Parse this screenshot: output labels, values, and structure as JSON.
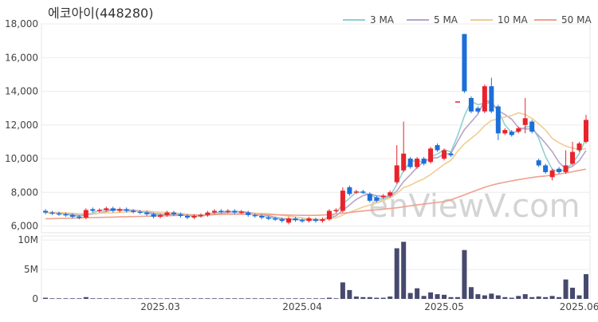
{
  "watermark": "enViewV.com",
  "chart_data": [
    {
      "type": "candlestick",
      "title": "에코아이(448280)",
      "open": [
        6900,
        6800,
        6750,
        6700,
        6650,
        6550,
        6500,
        7000,
        6900,
        6950,
        7050,
        6900,
        7000,
        6900,
        6850,
        6800,
        6700,
        6550,
        6650,
        6800,
        6700,
        6600,
        6500,
        6600,
        6650,
        6800,
        6900,
        6850,
        6900,
        6800,
        6800,
        6650,
        6600,
        6500,
        6450,
        6400,
        6200,
        6450,
        6350,
        6300,
        6400,
        6300,
        6400,
        6900,
        6900,
        8300,
        8000,
        8050,
        7900,
        7700,
        7700,
        7800,
        8600,
        9300,
        10000,
        9500,
        10000,
        9800,
        10800,
        10000,
        10300,
        13400,
        17400,
        13600,
        13000,
        12800,
        14300,
        13100,
        11500,
        11600,
        11600,
        12000,
        12200,
        9900,
        9600,
        8900,
        9400,
        9200,
        9700,
        10500,
        11000
      ],
      "high": [
        7000,
        6900,
        6850,
        6800,
        6750,
        6650,
        7050,
        7100,
        7050,
        7150,
        7150,
        7100,
        7100,
        7000,
        6950,
        6900,
        6800,
        6750,
        6900,
        6900,
        6800,
        6700,
        6700,
        6750,
        6900,
        7000,
        7000,
        7000,
        7000,
        6950,
        6900,
        6750,
        6700,
        6600,
        6550,
        6500,
        6550,
        6550,
        6450,
        6550,
        6500,
        6500,
        7000,
        7050,
        8300,
        8400,
        8150,
        8150,
        8000,
        7800,
        7900,
        8100,
        10800,
        12200,
        10100,
        10100,
        10100,
        10700,
        10900,
        10600,
        10400,
        13400,
        17400,
        13700,
        13100,
        14400,
        14800,
        13200,
        11800,
        11700,
        11900,
        13600,
        12300,
        10000,
        9700,
        9400,
        9500,
        10500,
        11000,
        11000,
        12600
      ],
      "low": [
        6700,
        6650,
        6600,
        6550,
        6450,
        6400,
        6400,
        6800,
        6800,
        6850,
        6800,
        6800,
        6800,
        6750,
        6700,
        6600,
        6450,
        6450,
        6550,
        6600,
        6500,
        6400,
        6400,
        6500,
        6550,
        6700,
        6750,
        6750,
        6700,
        6700,
        6550,
        6500,
        6400,
        6350,
        6300,
        6200,
        6100,
        6250,
        6200,
        6200,
        6200,
        6200,
        6300,
        6800,
        6800,
        7800,
        7900,
        7900,
        7400,
        7400,
        7600,
        7700,
        8500,
        9200,
        9400,
        9400,
        9600,
        9700,
        10400,
        9900,
        10100,
        13400,
        13900,
        12700,
        12700,
        12700,
        12700,
        11100,
        11400,
        11300,
        11500,
        11500,
        11500,
        9500,
        9100,
        8700,
        9100,
        9100,
        9600,
        10400,
        10900
      ],
      "close": [
        6800,
        6750,
        6700,
        6650,
        6550,
        6500,
        6950,
        6900,
        6950,
        7050,
        6900,
        7000,
        6900,
        6850,
        6800,
        6700,
        6550,
        6650,
        6800,
        6700,
        6600,
        6500,
        6600,
        6650,
        6800,
        6900,
        6850,
        6900,
        6800,
        6850,
        6650,
        6600,
        6500,
        6450,
        6400,
        6300,
        6450,
        6350,
        6300,
        6450,
        6300,
        6400,
        6900,
        6950,
        8100,
        7900,
        8050,
        8000,
        7500,
        7500,
        7800,
        8000,
        9600,
        10300,
        9500,
        10000,
        9700,
        10600,
        10500,
        10500,
        10200,
        13400,
        14000,
        12800,
        12800,
        14300,
        12800,
        11500,
        11700,
        11400,
        11800,
        12400,
        11600,
        9600,
        9200,
        9300,
        9200,
        9600,
        10400,
        10900,
        12300
      ],
      "up_color": "#e8232b",
      "down_color": "#1d6fd8",
      "series": [
        {
          "name": "3 MA",
          "color": "#8fd0d0",
          "values": [
            6800,
            6780,
            6750,
            6700,
            6630,
            6570,
            6670,
            6780,
            6930,
            6970,
            6970,
            6980,
            6930,
            6920,
            6850,
            6780,
            6680,
            6630,
            6670,
            6720,
            6700,
            6600,
            6570,
            6580,
            6680,
            6780,
            6850,
            6880,
            6850,
            6850,
            6770,
            6700,
            6580,
            6520,
            6450,
            6380,
            6380,
            6370,
            6370,
            6370,
            6350,
            6380,
            6530,
            6750,
            7320,
            7650,
            8020,
            7980,
            7850,
            7670,
            7600,
            7770,
            8470,
            9300,
            9800,
            9930,
            9730,
            10100,
            10270,
            10530,
            10400,
            11370,
            12530,
            13400,
            13200,
            13300,
            13300,
            12870,
            12000,
            11530,
            11630,
            11870,
            11930,
            11200,
            10130,
            9370,
            9230,
            9370,
            9730,
            10300,
            11200
          ]
        },
        {
          "name": "5 MA",
          "color": "#b7a3c9",
          "values": [
            6800,
            6790,
            6770,
            6740,
            6690,
            6630,
            6670,
            6710,
            6770,
            6870,
            6950,
            6960,
            6960,
            6940,
            6890,
            6850,
            6760,
            6710,
            6700,
            6680,
            6660,
            6650,
            6640,
            6610,
            6630,
            6690,
            6760,
            6820,
            6850,
            6860,
            6810,
            6760,
            6680,
            6610,
            6520,
            6450,
            6420,
            6390,
            6360,
            6370,
            6370,
            6360,
            6470,
            6600,
            6930,
            7250,
            7580,
            7800,
            7910,
            7790,
            7770,
            7760,
            8080,
            8640,
            9040,
            9480,
            9820,
            10020,
            10060,
            10260,
            10300,
            11040,
            11720,
            12180,
            12640,
            13460,
            13340,
            12840,
            12620,
            12340,
            11840,
            11760,
            11780,
            11360,
            10920,
            10420,
            9780,
            9380,
            9540,
            9880,
            10480
          ]
        },
        {
          "name": "10 MA",
          "color": "#f1cc92",
          "values": [
            6820,
            6810,
            6800,
            6780,
            6760,
            6730,
            6740,
            6750,
            6760,
            6780,
            6790,
            6810,
            6830,
            6850,
            6870,
            6890,
            6850,
            6820,
            6810,
            6780,
            6750,
            6700,
            6670,
            6650,
            6650,
            6670,
            6700,
            6730,
            6730,
            6740,
            6750,
            6760,
            6750,
            6730,
            6690,
            6630,
            6590,
            6530,
            6480,
            6440,
            6410,
            6390,
            6430,
            6480,
            6650,
            6810,
            6970,
            7130,
            7250,
            7360,
            7510,
            7670,
            7940,
            8280,
            8420,
            8630,
            8800,
            9060,
            9360,
            9660,
            9900,
            10440,
            10880,
            11200,
            11530,
            11960,
            12270,
            12350,
            12470,
            12560,
            12720,
            12620,
            12380,
            12060,
            11700,
            11200,
            10940,
            10750,
            10620,
            10550,
            10600
          ]
        },
        {
          "name": "50 MA",
          "color": "#f0a08f",
          "values": [
            6430,
            6440,
            6450,
            6460,
            6470,
            6480,
            6490,
            6500,
            6510,
            6520,
            6530,
            6540,
            6550,
            6560,
            6570,
            6580,
            6590,
            6600,
            6610,
            6620,
            6630,
            6640,
            6650,
            6660,
            6670,
            6680,
            6690,
            6700,
            6700,
            6700,
            6700,
            6700,
            6690,
            6680,
            6670,
            6660,
            6650,
            6640,
            6630,
            6630,
            6630,
            6650,
            6680,
            6710,
            6760,
            6800,
            6850,
            6890,
            6930,
            6960,
            7000,
            7040,
            7080,
            7140,
            7200,
            7250,
            7300,
            7350,
            7400,
            7450,
            7550,
            7700,
            7850,
            8000,
            8150,
            8300,
            8420,
            8520,
            8600,
            8680,
            8750,
            8820,
            8880,
            8930,
            8970,
            9020,
            9080,
            9150,
            9220,
            9300,
            9380
          ]
        }
      ],
      "ylim": [
        5600,
        18000
      ],
      "yticks": [
        {
          "value": 6000,
          "label": "6,000"
        },
        {
          "value": 8000,
          "label": "8,000"
        },
        {
          "value": 10000,
          "label": "10,000"
        },
        {
          "value": 12000,
          "label": "12,000"
        },
        {
          "value": 14000,
          "label": "14,000"
        },
        {
          "value": 16000,
          "label": "16,000"
        },
        {
          "value": 18000,
          "label": "18,000"
        }
      ],
      "grid": true
    },
    {
      "type": "bar",
      "color": "#474a6e",
      "categories": [
        null,
        null,
        null,
        null,
        null,
        null,
        null,
        null,
        null,
        null,
        null,
        null,
        null,
        null,
        null,
        null,
        null,
        "2025.03",
        null,
        null,
        null,
        null,
        null,
        null,
        null,
        null,
        null,
        null,
        null,
        null,
        null,
        null,
        null,
        null,
        null,
        null,
        null,
        null,
        "2025.04",
        null,
        null,
        null,
        null,
        null,
        null,
        null,
        null,
        null,
        null,
        null,
        null,
        null,
        null,
        null,
        null,
        null,
        null,
        null,
        null,
        "2025.05",
        null,
        null,
        null,
        null,
        null,
        null,
        null,
        null,
        null,
        null,
        null,
        null,
        null,
        null,
        null,
        null,
        null,
        null,
        null,
        "2025.06",
        null
      ],
      "values": [
        200000,
        100000,
        100000,
        100000,
        100000,
        100000,
        300000,
        100000,
        100000,
        100000,
        100000,
        100000,
        100000,
        100000,
        100000,
        100000,
        100000,
        80000,
        100000,
        100000,
        100000,
        100000,
        100000,
        100000,
        100000,
        100000,
        100000,
        100000,
        100000,
        100000,
        100000,
        100000,
        100000,
        100000,
        100000,
        100000,
        100000,
        100000,
        100000,
        100000,
        100000,
        100000,
        200000,
        100000,
        2800000,
        1500000,
        400000,
        300000,
        300000,
        200000,
        200000,
        400000,
        8600000,
        9700000,
        1000000,
        1800000,
        500000,
        1100000,
        800000,
        700000,
        300000,
        300000,
        8300000,
        2000000,
        800000,
        600000,
        900000,
        600000,
        300000,
        200000,
        500000,
        800000,
        300000,
        400000,
        300000,
        500000,
        300000,
        3300000,
        1900000,
        600000,
        4200000
      ],
      "ylim": [
        0,
        10700000
      ],
      "yticks": [
        0,
        {
          "value": 5000000,
          "label": "5M"
        },
        {
          "value": 10000000,
          "label": "10M"
        }
      ],
      "grid": true
    }
  ]
}
